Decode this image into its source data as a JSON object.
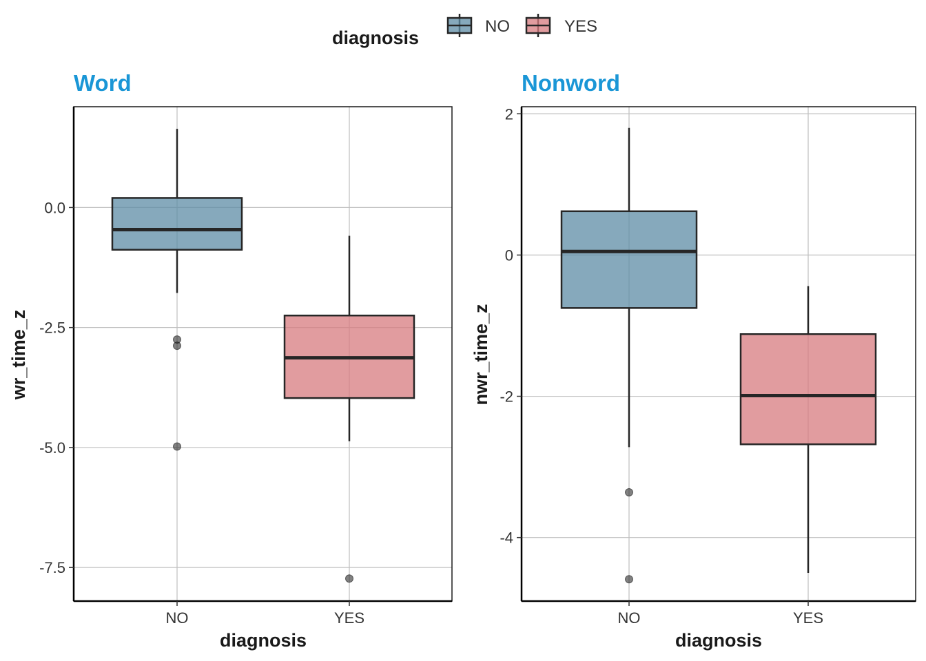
{
  "legend": {
    "title": "diagnosis",
    "items": [
      {
        "label": "NO",
        "color": "#5d8ca5"
      },
      {
        "label": "YES",
        "color": "#d77b7f"
      }
    ]
  },
  "colors": {
    "title": "#1a96d6",
    "box_edge": "#262626",
    "grid": "#bfbfbf",
    "outlier": "#6e6e6e"
  },
  "chart_data": [
    {
      "type": "box",
      "title": "Word",
      "xlabel": "diagnosis",
      "ylabel": "wr_time_z",
      "categories": [
        "NO",
        "YES"
      ],
      "ylim": [
        -8.2,
        2.1
      ],
      "yticks": [
        0.0,
        -2.5,
        -5.0,
        -7.5
      ],
      "ytick_labels": [
        "0.0",
        "-2.5",
        "-5.0",
        "-7.5"
      ],
      "grid": true,
      "boxes": [
        {
          "category": "NO",
          "whisker_low": -1.78,
          "q1": -0.88,
          "median": -0.46,
          "q3": 0.2,
          "whisker_high": 1.64,
          "outliers": [
            -2.75,
            -2.88,
            -4.98
          ]
        },
        {
          "category": "YES",
          "whisker_low": -4.87,
          "q1": -3.97,
          "median": -3.13,
          "q3": -2.25,
          "whisker_high": -0.59,
          "outliers": [
            -7.73
          ]
        }
      ]
    },
    {
      "type": "box",
      "title": "Nonword",
      "xlabel": "diagnosis",
      "ylabel": "nwr_time_z",
      "categories": [
        "NO",
        "YES"
      ],
      "ylim": [
        -4.9,
        2.1
      ],
      "yticks": [
        2,
        0,
        -2,
        -4
      ],
      "ytick_labels": [
        "2",
        "0",
        "-2",
        "-4"
      ],
      "grid": true,
      "boxes": [
        {
          "category": "NO",
          "whisker_low": -2.72,
          "q1": -0.75,
          "median": 0.05,
          "q3": 0.62,
          "whisker_high": 1.8,
          "outliers": [
            -3.36,
            -4.59
          ]
        },
        {
          "category": "YES",
          "whisker_low": -4.5,
          "q1": -2.68,
          "median": -1.99,
          "q3": -1.12,
          "whisker_high": -0.44,
          "outliers": []
        }
      ]
    }
  ]
}
